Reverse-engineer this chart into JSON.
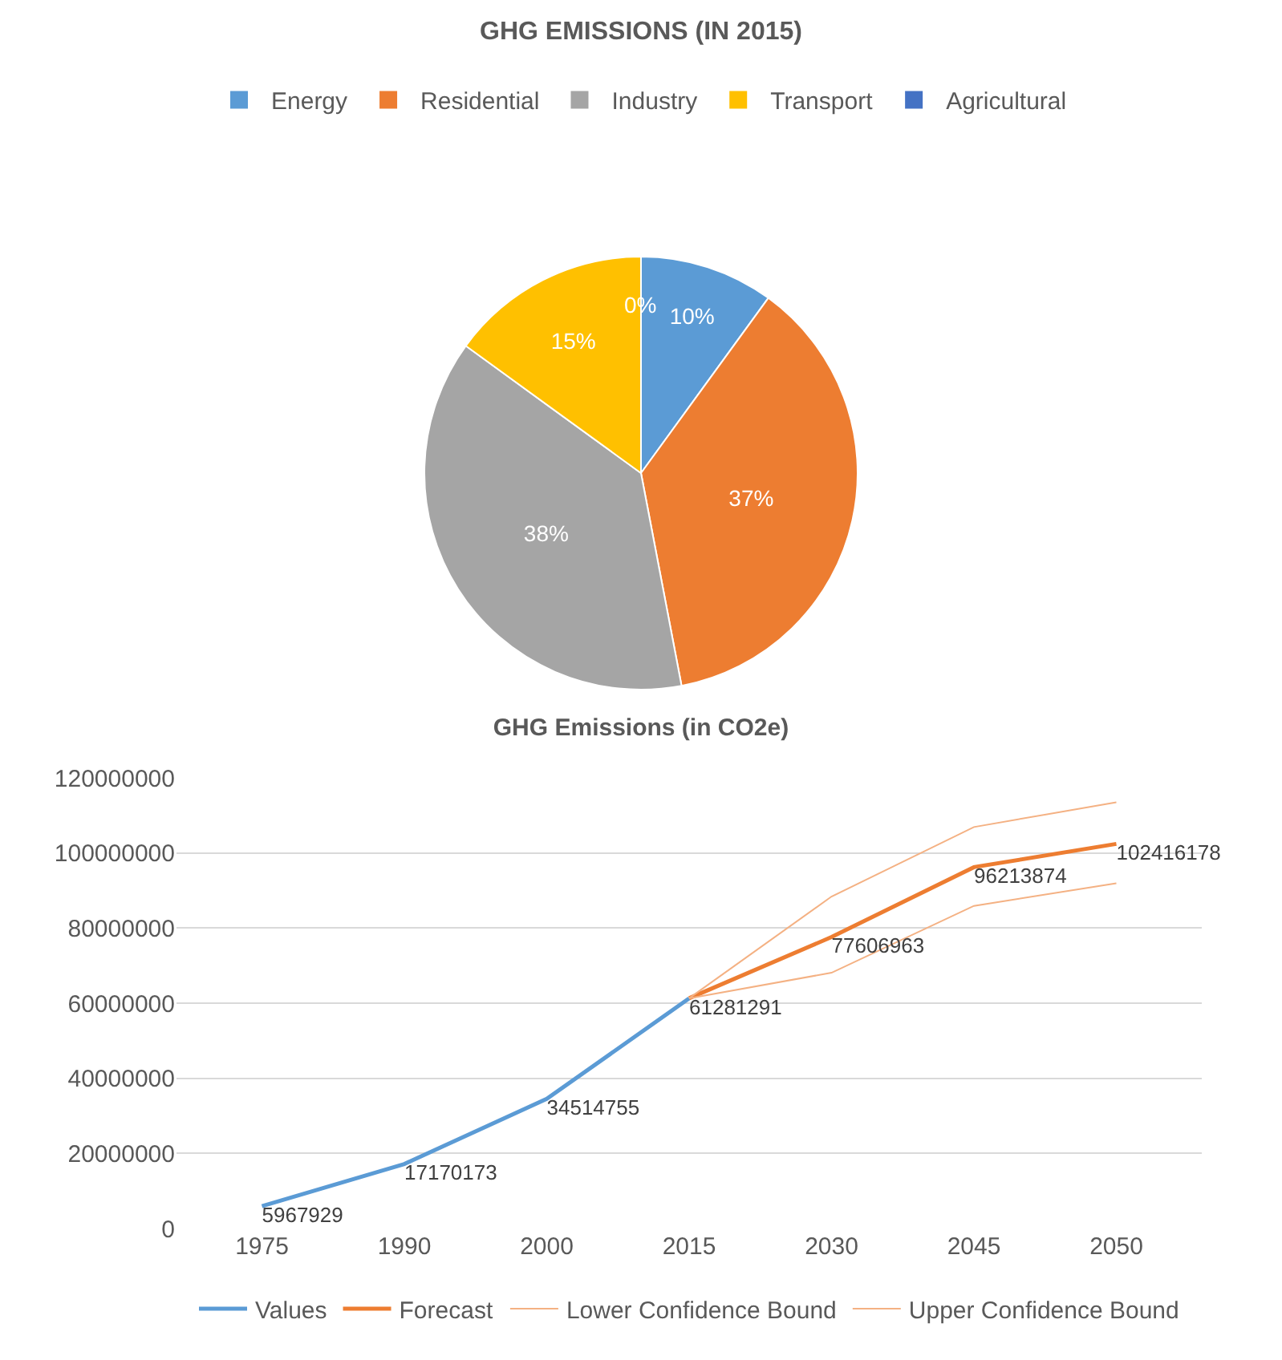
{
  "chart_data": [
    {
      "type": "pie",
      "title": "GHG EMISSIONS (IN 2015)",
      "categories": [
        "Energy",
        "Residential",
        "Industry",
        "Transport",
        "Agricultural"
      ],
      "values": [
        10,
        37,
        38,
        15,
        0
      ],
      "value_labels": [
        "10%",
        "37%",
        "38%",
        "15%",
        "0%"
      ],
      "colors": [
        "#5b9bd5",
        "#ed7d31",
        "#a5a5a5",
        "#ffc000",
        "#4472c4"
      ],
      "legend": "top"
    },
    {
      "type": "line",
      "title": "GHG Emissions (in CO2e)",
      "categories": [
        "1975",
        "1990",
        "2000",
        "2015",
        "2030",
        "2045",
        "2050"
      ],
      "ylim": [
        0,
        120000000
      ],
      "yticks": [
        0,
        20000000,
        40000000,
        60000000,
        80000000,
        100000000,
        120000000
      ],
      "grid": "y",
      "legend": "bottom",
      "marker": "none",
      "series": [
        {
          "name": "Values",
          "color": "#5b9bd5",
          "values": [
            5967929,
            17170173,
            34514755,
            61281291,
            null,
            null,
            null
          ],
          "value_labels": [
            "5967929",
            "17170173",
            "34514755",
            "61281291",
            null,
            null,
            null
          ]
        },
        {
          "name": "Forecast",
          "color": "#ed7d31",
          "values": [
            null,
            null,
            null,
            61300000,
            77606963,
            96213874,
            102416178
          ],
          "value_labels": [
            null,
            null,
            null,
            null,
            "77606963",
            "96213874",
            "102416178"
          ]
        },
        {
          "name": "Lower Confidence Bound",
          "color": "#f4b183",
          "values": [
            null,
            null,
            null,
            61300000,
            68100000,
            85900000,
            91900000
          ]
        },
        {
          "name": "Upper Confidence Bound",
          "color": "#f4b183",
          "values": [
            null,
            null,
            null,
            61300000,
            88400000,
            106900000,
            113500000
          ]
        }
      ]
    }
  ]
}
